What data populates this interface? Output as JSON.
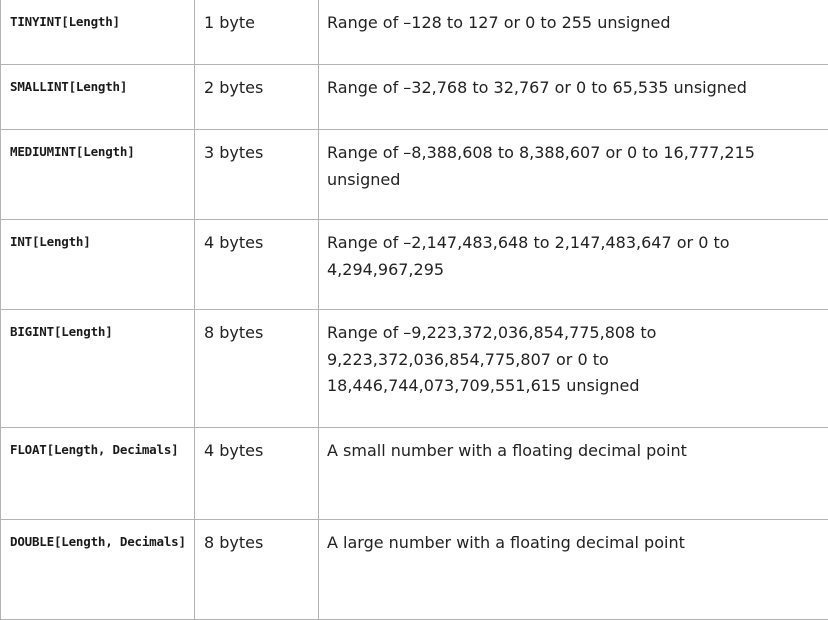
{
  "rows": [
    {
      "type": "TINYINT[Length]",
      "storage": "1 byte",
      "description": "Range of –128 to 127 or 0 to 255 unsigned"
    },
    {
      "type": "SMALLINT[Length]",
      "storage": "2 bytes",
      "description": "Range of –32,768 to 32,767 or 0 to 65,535 unsigned"
    },
    {
      "type": "MEDIUMINT[Length]",
      "storage": "3 bytes",
      "description": "Range of –8,388,608 to 8,388,607 or 0 to 16,777,215 unsigned"
    },
    {
      "type": "INT[Length]",
      "storage": "4 bytes",
      "description": "Range of –2,147,483,648 to 2,147,483,647 or 0 to 4,294,967,295"
    },
    {
      "type": "BIGINT[Length]",
      "storage": "8 bytes",
      "description": "Range of –9,223,372,036,854,775,808 to 9,223,372,036,854,775,807 or 0 to 18,446,744,073,709,551,615 unsigned"
    },
    {
      "type": "FLOAT[Length, Decimals]",
      "storage": "4 bytes",
      "description": "A small number with a floating decimal point"
    },
    {
      "type": "DOUBLE[Length, Decimals]",
      "storage": "8 bytes",
      "description": "A large number with a floating decimal point"
    }
  ]
}
